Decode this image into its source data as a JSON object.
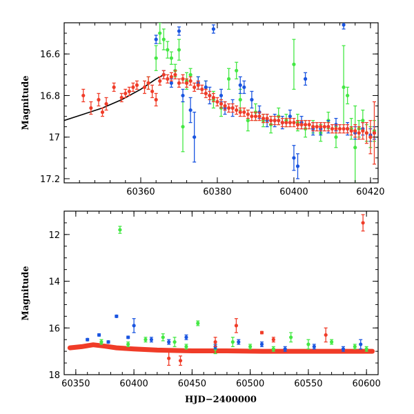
{
  "chart_data": [
    {
      "type": "scatter",
      "panel": "top",
      "xlabel": "",
      "ylabel": "Magnitude",
      "xlim": [
        60340,
        60422
      ],
      "ylim": [
        17.22,
        16.45
      ],
      "y_inverted": true,
      "x_ticks": [
        60360,
        60380,
        60400,
        60420
      ],
      "y_ticks": [
        16.6,
        16.8,
        17,
        17.2
      ],
      "x_tick_labels": [
        "60360",
        "60380",
        "60400",
        "60420"
      ],
      "y_tick_labels": [
        "16.6",
        "16.8",
        "17",
        "17.2"
      ],
      "colors": {
        "green": "#44e844",
        "blue": "#1a55e0",
        "red": "#f03c28",
        "curve": "#000000"
      },
      "model_curve": {
        "x": [
          60340,
          60345,
          60350,
          60355,
          60360,
          60362,
          60364,
          60366
        ],
        "y": [
          16.92,
          16.89,
          16.86,
          16.82,
          16.77,
          16.745,
          16.72,
          16.7
        ]
      },
      "series": [
        {
          "color": "green",
          "points": [
            [
              60362,
              16.74,
              0.03
            ],
            [
              60364,
              16.62,
              0.06
            ],
            [
              60365,
              16.5,
              0.05
            ],
            [
              60366,
              16.53,
              0.05
            ],
            [
              60367,
              16.58,
              0.04
            ],
            [
              60368,
              16.62,
              0.03
            ],
            [
              60369,
              16.68,
              0.03
            ],
            [
              60370,
              16.58,
              0.05
            ],
            [
              60371,
              16.95,
              0.12
            ],
            [
              60372,
              16.73,
              0.04
            ],
            [
              60373,
              16.7,
              0.03
            ],
            [
              60375,
              16.74,
              0.03
            ],
            [
              60377,
              16.76,
              0.03
            ],
            [
              60379,
              16.82,
              0.04
            ],
            [
              60381,
              16.86,
              0.04
            ],
            [
              60383,
              16.72,
              0.05
            ],
            [
              60385,
              16.68,
              0.04
            ],
            [
              60386,
              16.82,
              0.05
            ],
            [
              60388,
              16.92,
              0.05
            ],
            [
              60390,
              16.88,
              0.04
            ],
            [
              60392,
              16.92,
              0.03
            ],
            [
              60394,
              16.94,
              0.04
            ],
            [
              60396,
              16.9,
              0.04
            ],
            [
              60398,
              16.92,
              0.03
            ],
            [
              60400,
              16.65,
              0.12
            ],
            [
              60401,
              16.93,
              0.04
            ],
            [
              60403,
              16.96,
              0.04
            ],
            [
              60405,
              16.95,
              0.03
            ],
            [
              60407,
              16.98,
              0.04
            ],
            [
              60409,
              16.92,
              0.04
            ],
            [
              60411,
              17.0,
              0.05
            ],
            [
              60413,
              16.76,
              0.2
            ],
            [
              60414,
              16.8,
              0.04
            ],
            [
              60415,
              16.96,
              0.05
            ],
            [
              60416,
              17.05,
              0.2
            ],
            [
              60417,
              16.96,
              0.04
            ],
            [
              60418,
              16.92,
              0.05
            ],
            [
              60419,
              16.98,
              0.04
            ],
            [
              60420,
              17.0,
              0.05
            ],
            [
              60421,
              16.97,
              0.05
            ]
          ]
        },
        {
          "color": "blue",
          "points": [
            [
              60364,
              16.53,
              0.02
            ],
            [
              60366,
              16.7,
              0.02
            ],
            [
              60368,
              16.74,
              0.02
            ],
            [
              60370,
              16.49,
              0.02
            ],
            [
              60371,
              16.8,
              0.03
            ],
            [
              60373,
              16.87,
              0.06
            ],
            [
              60374,
              17.0,
              0.12
            ],
            [
              60375,
              16.74,
              0.03
            ],
            [
              60377,
              16.76,
              0.03
            ],
            [
              60378,
              16.8,
              0.04
            ],
            [
              60379,
              16.48,
              0.02
            ],
            [
              60381,
              16.8,
              0.03
            ],
            [
              60382,
              16.86,
              0.03
            ],
            [
              60384,
              16.86,
              0.04
            ],
            [
              60386,
              16.75,
              0.04
            ],
            [
              60387,
              16.76,
              0.03
            ],
            [
              60389,
              16.82,
              0.04
            ],
            [
              60391,
              16.88,
              0.03
            ],
            [
              60393,
              16.92,
              0.03
            ],
            [
              60395,
              16.92,
              0.03
            ],
            [
              60397,
              16.93,
              0.03
            ],
            [
              60399,
              16.9,
              0.03
            ],
            [
              60400,
              17.1,
              0.06
            ],
            [
              60401,
              17.14,
              0.06
            ],
            [
              60402,
              16.93,
              0.03
            ],
            [
              60403,
              16.72,
              0.03
            ],
            [
              60405,
              16.96,
              0.03
            ],
            [
              60407,
              16.96,
              0.03
            ],
            [
              60409,
              16.95,
              0.03
            ],
            [
              60411,
              16.94,
              0.03
            ],
            [
              60413,
              16.46,
              0.02
            ],
            [
              60414,
              16.96,
              0.03
            ],
            [
              60416,
              16.98,
              0.03
            ],
            [
              60418,
              16.96,
              0.03
            ],
            [
              60420,
              16.99,
              0.03
            ],
            [
              60421,
              16.98,
              0.03
            ]
          ]
        },
        {
          "color": "red",
          "points": [
            [
              60345,
              16.8,
              0.03
            ],
            [
              60347,
              16.86,
              0.03
            ],
            [
              60349,
              16.82,
              0.03
            ],
            [
              60350,
              16.88,
              0.02
            ],
            [
              60351,
              16.84,
              0.03
            ],
            [
              60353,
              16.76,
              0.02
            ],
            [
              60355,
              16.81,
              0.02
            ],
            [
              60356,
              16.79,
              0.02
            ],
            [
              60357,
              16.78,
              0.02
            ],
            [
              60358,
              16.76,
              0.02
            ],
            [
              60359,
              16.75,
              0.02
            ],
            [
              60361,
              16.76,
              0.03
            ],
            [
              60362,
              16.74,
              0.03
            ],
            [
              60363,
              16.78,
              0.03
            ],
            [
              60364,
              16.82,
              0.03
            ],
            [
              60365,
              16.73,
              0.02
            ],
            [
              60366,
              16.7,
              0.02
            ],
            [
              60367,
              16.72,
              0.02
            ],
            [
              60368,
              16.71,
              0.02
            ],
            [
              60369,
              16.7,
              0.02
            ],
            [
              60370,
              16.74,
              0.02
            ],
            [
              60371,
              16.72,
              0.02
            ],
            [
              60372,
              16.74,
              0.02
            ],
            [
              60373,
              16.73,
              0.02
            ],
            [
              60374,
              16.76,
              0.02
            ],
            [
              60375,
              16.75,
              0.02
            ],
            [
              60376,
              16.77,
              0.02
            ],
            [
              60377,
              16.79,
              0.02
            ],
            [
              60378,
              16.8,
              0.02
            ],
            [
              60379,
              16.81,
              0.02
            ],
            [
              60380,
              16.83,
              0.02
            ],
            [
              60381,
              16.84,
              0.02
            ],
            [
              60382,
              16.85,
              0.02
            ],
            [
              60383,
              16.86,
              0.02
            ],
            [
              60384,
              16.86,
              0.02
            ],
            [
              60385,
              16.87,
              0.02
            ],
            [
              60386,
              16.88,
              0.02
            ],
            [
              60387,
              16.88,
              0.02
            ],
            [
              60388,
              16.89,
              0.02
            ],
            [
              60389,
              16.9,
              0.02
            ],
            [
              60390,
              16.9,
              0.02
            ],
            [
              60391,
              16.9,
              0.02
            ],
            [
              60392,
              16.91,
              0.02
            ],
            [
              60393,
              16.91,
              0.02
            ],
            [
              60394,
              16.92,
              0.02
            ],
            [
              60395,
              16.92,
              0.02
            ],
            [
              60396,
              16.92,
              0.02
            ],
            [
              60397,
              16.93,
              0.02
            ],
            [
              60398,
              16.93,
              0.02
            ],
            [
              60399,
              16.93,
              0.02
            ],
            [
              60400,
              16.93,
              0.02
            ],
            [
              60401,
              16.94,
              0.02
            ],
            [
              60402,
              16.94,
              0.02
            ],
            [
              60403,
              16.94,
              0.02
            ],
            [
              60404,
              16.94,
              0.02
            ],
            [
              60405,
              16.95,
              0.02
            ],
            [
              60406,
              16.95,
              0.02
            ],
            [
              60407,
              16.95,
              0.02
            ],
            [
              60408,
              16.95,
              0.02
            ],
            [
              60409,
              16.95,
              0.02
            ],
            [
              60410,
              16.96,
              0.02
            ],
            [
              60411,
              16.96,
              0.02
            ],
            [
              60412,
              16.96,
              0.02
            ],
            [
              60413,
              16.96,
              0.02
            ],
            [
              60414,
              16.96,
              0.02
            ],
            [
              60415,
              16.97,
              0.02
            ],
            [
              60416,
              16.97,
              0.03
            ],
            [
              60417,
              16.98,
              0.03
            ],
            [
              60418,
              16.97,
              0.04
            ],
            [
              60419,
              16.98,
              0.05
            ],
            [
              60420,
              17.0,
              0.08
            ],
            [
              60421,
              16.98,
              0.15
            ]
          ]
        }
      ]
    },
    {
      "type": "scatter",
      "panel": "bottom",
      "xlabel": "HJD−2400000",
      "ylabel": "Magnitude",
      "xlim": [
        60340,
        60610
      ],
      "ylim": [
        18.0,
        11.0
      ],
      "y_inverted": true,
      "x_ticks": [
        60350,
        60400,
        60450,
        60500,
        60550,
        60600
      ],
      "y_ticks": [
        12,
        14,
        16,
        18
      ],
      "x_tick_labels": [
        "60350",
        "60400",
        "60450",
        "60500",
        "60550",
        "60600"
      ],
      "y_tick_labels": [
        "12",
        "14",
        "16",
        "18"
      ],
      "series": [
        {
          "color": "green",
          "points": [
            [
              60388,
              11.8,
              0.15
            ],
            [
              60372,
              16.6,
              0.1
            ],
            [
              60395,
              16.7,
              0.1
            ],
            [
              60410,
              16.5,
              0.1
            ],
            [
              60425,
              16.4,
              0.15
            ],
            [
              60435,
              16.6,
              0.2
            ],
            [
              60445,
              16.8,
              0.1
            ],
            [
              60455,
              15.8,
              0.1
            ],
            [
              60470,
              16.9,
              0.2
            ],
            [
              60485,
              16.6,
              0.2
            ],
            [
              60500,
              16.8,
              0.1
            ],
            [
              60520,
              16.9,
              0.1
            ],
            [
              60535,
              16.4,
              0.2
            ],
            [
              60550,
              16.7,
              0.2
            ],
            [
              60570,
              16.6,
              0.1
            ],
            [
              60590,
              16.8,
              0.1
            ],
            [
              60600,
              16.9,
              0.1
            ]
          ]
        },
        {
          "color": "blue",
          "points": [
            [
              60360,
              16.5,
              0.05
            ],
            [
              60370,
              16.3,
              0.05
            ],
            [
              60378,
              16.6,
              0.05
            ],
            [
              60385,
              15.5,
              0.05
            ],
            [
              60395,
              16.4,
              0.05
            ],
            [
              60400,
              15.9,
              0.3
            ],
            [
              60415,
              16.5,
              0.1
            ],
            [
              60430,
              16.6,
              0.1
            ],
            [
              60445,
              16.4,
              0.1
            ],
            [
              60470,
              16.8,
              0.1
            ],
            [
              60490,
              16.6,
              0.1
            ],
            [
              60510,
              16.7,
              0.1
            ],
            [
              60530,
              16.9,
              0.1
            ],
            [
              60555,
              16.8,
              0.1
            ],
            [
              60580,
              16.9,
              0.1
            ],
            [
              60595,
              16.7,
              0.2
            ]
          ]
        },
        {
          "color": "red",
          "points": [
            [
              60597,
              11.5,
              0.35
            ],
            [
              60488,
              15.9,
              0.3
            ],
            [
              60510,
              16.2,
              0.05
            ],
            [
              60565,
              16.3,
              0.3
            ],
            [
              60520,
              16.5,
              0.1
            ],
            [
              60470,
              16.6,
              0.2
            ],
            [
              60440,
              17.4,
              0.2
            ],
            [
              60430,
              17.3,
              0.3
            ]
          ]
        }
      ],
      "red_band": {
        "x": [
          60345,
          60355,
          60365,
          60375,
          60385,
          60400,
          60420,
          60450,
          60480,
          60510,
          60540,
          60570,
          60605
        ],
        "y": [
          16.85,
          16.8,
          16.72,
          16.78,
          16.85,
          16.9,
          16.95,
          16.98,
          16.98,
          17.0,
          17.0,
          17.0,
          17.0
        ]
      }
    }
  ]
}
